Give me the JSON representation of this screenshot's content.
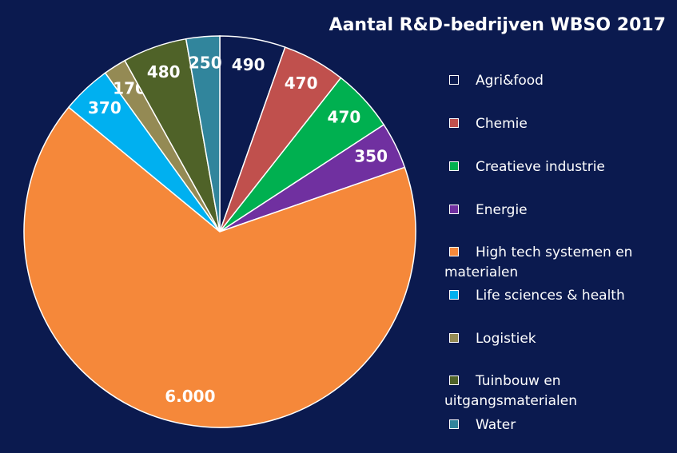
{
  "chart_data": {
    "type": "pie",
    "title": "Aantal R&D-bedrijven WBSO 2017",
    "categories": [
      "Agri&food",
      "Chemie",
      "Creatieve industrie",
      "Energie",
      "High tech systemen en materialen",
      "Life sciences & health",
      "Logistiek",
      "Tuinbouw en uitgangsmaterialen",
      "Water"
    ],
    "values": [
      490,
      470,
      470,
      350,
      6000,
      370,
      170,
      480,
      250
    ],
    "value_labels": [
      "490",
      "470",
      "470",
      "350",
      "6.000",
      "370",
      "170",
      "480",
      "250"
    ],
    "colors": [
      "#0b1a4f",
      "#c0504d",
      "#00b050",
      "#7030a0",
      "#f5883a",
      "#00b0f0",
      "#948a54",
      "#4f6228",
      "#31859c"
    ],
    "legend": "right"
  }
}
